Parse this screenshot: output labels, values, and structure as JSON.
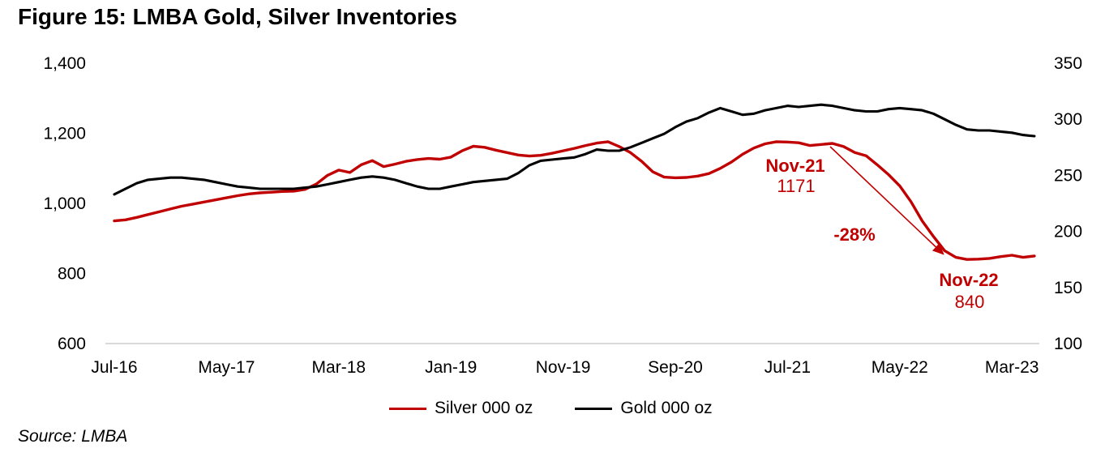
{
  "title": "Figure 15: LMBA Gold, Silver Inventories",
  "source": "Source: LMBA",
  "colors": {
    "silver": "#C00000",
    "gold": "#000000",
    "axis_line": "#D9D9D9",
    "annotation": "#C00000"
  },
  "legend": {
    "silver_label": "Silver 000 oz",
    "gold_label": "Gold 000 oz"
  },
  "annotations": {
    "peak_label": "Nov-21",
    "peak_value": "1171",
    "change_label": "-28%",
    "trough_label": "Nov-22",
    "trough_value": "840"
  },
  "chart_data": {
    "type": "line",
    "title": "Figure 15: LMBA Gold, Silver Inventories",
    "x_tick_labels": [
      "Jul-16",
      "May-17",
      "Mar-18",
      "Jan-19",
      "Nov-19",
      "Sep-20",
      "Jul-21",
      "May-22",
      "Mar-23"
    ],
    "x_tick_interval_months": 10,
    "start_month": "Jul-16",
    "end_month": "May-23",
    "frequency": "monthly",
    "grid": false,
    "legend_position": "bottom",
    "left_axis": {
      "tick_labels": [
        "1,400",
        "1,200",
        "1,000",
        "800",
        "600"
      ],
      "min": 600,
      "max": 1400
    },
    "right_axis": {
      "tick_labels": [
        "350",
        "300",
        "250",
        "200",
        "150",
        "100"
      ],
      "min": 100,
      "max": 350
    },
    "series": [
      {
        "name": "Silver 000 oz",
        "axis": "left",
        "color": "#C00000",
        "values": [
          950,
          953,
          960,
          968,
          976,
          984,
          992,
          998,
          1004,
          1010,
          1016,
          1022,
          1027,
          1030,
          1032,
          1034,
          1035,
          1040,
          1055,
          1080,
          1095,
          1088,
          1110,
          1122,
          1105,
          1112,
          1120,
          1125,
          1128,
          1126,
          1132,
          1150,
          1163,
          1160,
          1152,
          1145,
          1138,
          1135,
          1137,
          1143,
          1150,
          1157,
          1165,
          1172,
          1176,
          1162,
          1145,
          1120,
          1090,
          1075,
          1073,
          1074,
          1078,
          1085,
          1100,
          1118,
          1140,
          1158,
          1170,
          1176,
          1175,
          1173,
          1165,
          1168,
          1171,
          1162,
          1145,
          1136,
          1110,
          1082,
          1050,
          1005,
          950,
          906,
          865,
          846,
          840,
          841,
          843,
          848,
          852,
          846,
          850
        ]
      },
      {
        "name": "Gold 000 oz",
        "axis": "right",
        "color": "#000000",
        "values": [
          233,
          238,
          243,
          246,
          247,
          248,
          248,
          247,
          246,
          244,
          242,
          240,
          239,
          238,
          238,
          238,
          238,
          239,
          240,
          242,
          244,
          246,
          248,
          249,
          248,
          246,
          243,
          240,
          238,
          238,
          240,
          242,
          244,
          245,
          246,
          247,
          252,
          259,
          263,
          264,
          265,
          266,
          269,
          273,
          272,
          272,
          275,
          279,
          283,
          287,
          293,
          298,
          301,
          306,
          310,
          307,
          304,
          305,
          308,
          310,
          312,
          311,
          312,
          313,
          312,
          310,
          308,
          307,
          307,
          309,
          310,
          309,
          308,
          305,
          300,
          295,
          291,
          290,
          290,
          289,
          288,
          286,
          285
        ]
      }
    ],
    "point_annotations": [
      {
        "month": "Nov-21",
        "series": "Silver 000 oz",
        "value": 1171
      },
      {
        "month": "Nov-22",
        "series": "Silver 000 oz",
        "value": 840
      },
      {
        "change": "-28%"
      }
    ]
  }
}
